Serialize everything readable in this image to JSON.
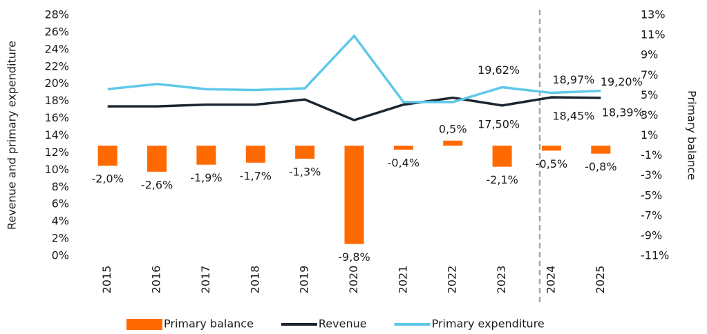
{
  "chart_data": {
    "type": "bar_line",
    "y_label": "Revenue and primary expenditure",
    "y2_label": "Primary balance",
    "categories": [
      "2015",
      "2016",
      "2017",
      "2018",
      "2019",
      "2020",
      "2021",
      "2022",
      "2023",
      "2024",
      "2025"
    ],
    "ylim": [
      0,
      28
    ],
    "yticks": [
      {
        "value": 0,
        "label": "0%"
      },
      {
        "value": 2,
        "label": "2%"
      },
      {
        "value": 4,
        "label": "4%"
      },
      {
        "value": 6,
        "label": "6%"
      },
      {
        "value": 8,
        "label": "8%"
      },
      {
        "value": 10,
        "label": "10%"
      },
      {
        "value": 12,
        "label": "12%"
      },
      {
        "value": 14,
        "label": "14%"
      },
      {
        "value": 16,
        "label": "16%"
      },
      {
        "value": 18,
        "label": "18%"
      },
      {
        "value": 20,
        "label": "20%"
      },
      {
        "value": 22,
        "label": "22%"
      },
      {
        "value": 24,
        "label": "24%"
      },
      {
        "value": 26,
        "label": "26%"
      },
      {
        "value": 28,
        "label": "28%"
      }
    ],
    "y2lim": [
      -11,
      13
    ],
    "y2ticks": [
      {
        "value": -11,
        "label": "-11%"
      },
      {
        "value": -9,
        "label": "-9%"
      },
      {
        "value": -7,
        "label": "-7%"
      },
      {
        "value": -5,
        "label": "-5%"
      },
      {
        "value": -3,
        "label": "-3%"
      },
      {
        "value": -1,
        "label": "-1%"
      },
      {
        "value": 1,
        "label": "1%"
      },
      {
        "value": 3,
        "label": "3%"
      },
      {
        "value": 5,
        "label": "5%"
      },
      {
        "value": 7,
        "label": "7%"
      },
      {
        "value": 9,
        "label": "9%"
      },
      {
        "value": 11,
        "label": "11%"
      },
      {
        "value": 13,
        "label": "13%"
      }
    ],
    "series": [
      {
        "name": "Primary balance",
        "type": "bar",
        "axis": "y2",
        "color": "#ff6a00",
        "values": [
          -2.0,
          -2.6,
          -1.9,
          -1.7,
          -1.3,
          -9.8,
          -0.4,
          0.5,
          -2.1,
          -0.5,
          -0.8
        ],
        "value_labels": [
          "-2,0%",
          "-2,6%",
          "-1,9%",
          "-1,7%",
          "-1,3%",
          "-9,8%",
          "-0,4%",
          "0,5%",
          "-2,1%",
          "-0,5%",
          "-0,8%"
        ]
      },
      {
        "name": "Revenue",
        "type": "line",
        "color": "#1b2631",
        "values": [
          17.4,
          17.4,
          17.6,
          17.6,
          18.2,
          15.8,
          17.6,
          18.4,
          17.5,
          18.45,
          18.39
        ],
        "value_labels": [
          null,
          null,
          null,
          null,
          null,
          null,
          null,
          null,
          "17,50%",
          "18,45%",
          "18,39%"
        ]
      },
      {
        "name": "Primary expenditure",
        "type": "line",
        "color": "#5ec8ea",
        "values": [
          19.4,
          20.0,
          19.4,
          19.3,
          19.5,
          25.6,
          17.9,
          17.9,
          19.62,
          18.97,
          19.2
        ],
        "value_labels": [
          null,
          null,
          null,
          null,
          null,
          null,
          null,
          null,
          "19,62%",
          "18,97%",
          "19,20%"
        ]
      }
    ]
  }
}
